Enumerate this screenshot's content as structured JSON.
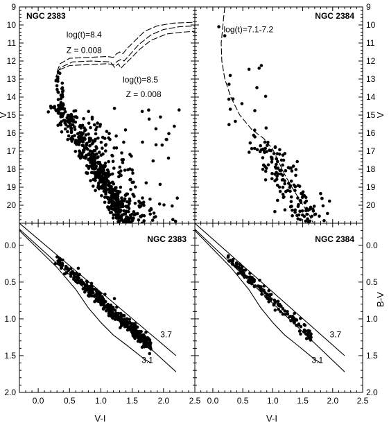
{
  "chart_data": [
    {
      "type": "scatter",
      "title": "NGC 2383",
      "xlabel": "",
      "ylabel": "V",
      "xlim": [
        -0.3,
        2.5
      ],
      "ylim": [
        9,
        21
      ],
      "yticks": [
        9,
        10,
        11,
        12,
        13,
        14,
        15,
        16,
        17,
        18,
        19,
        20
      ],
      "y_inverted": true,
      "annotations": [
        {
          "text": "log(t)=8.4",
          "x": 0.45,
          "y": 10.7
        },
        {
          "text": "Z = 0.008",
          "x": 0.45,
          "y": 11.55
        },
        {
          "text": "log(t)=8.5",
          "x": 1.35,
          "y": 13.2
        },
        {
          "text": "Z = 0.008",
          "x": 1.4,
          "y": 14.0
        }
      ],
      "isochrones": [
        {
          "style": "dashed",
          "points": [
            [
              0.3,
              12.6
            ],
            [
              0.35,
              12.15
            ],
            [
              0.5,
              11.85
            ],
            [
              0.8,
              11.8
            ],
            [
              1.1,
              11.75
            ],
            [
              1.2,
              11.8
            ],
            [
              1.25,
              11.6
            ],
            [
              1.3,
              11.5
            ],
            [
              1.35,
              11.6
            ],
            [
              1.42,
              11.3
            ],
            [
              1.55,
              10.85
            ],
            [
              1.7,
              10.35
            ],
            [
              1.9,
              10.05
            ],
            [
              2.15,
              9.9
            ],
            [
              2.5,
              9.85
            ]
          ]
        },
        {
          "style": "dashed",
          "points": [
            [
              0.28,
              12.9
            ],
            [
              0.33,
              12.5
            ],
            [
              0.5,
              12.25
            ],
            [
              0.8,
              12.2
            ],
            [
              1.1,
              12.15
            ],
            [
              1.2,
              12.2
            ],
            [
              1.27,
              12.0
            ],
            [
              1.33,
              11.9
            ],
            [
              1.37,
              12.0
            ],
            [
              1.45,
              11.7
            ],
            [
              1.6,
              11.1
            ],
            [
              1.8,
              10.55
            ],
            [
              2.0,
              10.25
            ],
            [
              2.25,
              10.1
            ],
            [
              2.5,
              10.05
            ]
          ]
        },
        {
          "style": "dashed",
          "points": [
            [
              0.3,
              12.65
            ],
            [
              0.36,
              12.35
            ],
            [
              0.55,
              12.05
            ],
            [
              0.85,
              12.0
            ],
            [
              1.15,
              12.05
            ],
            [
              1.22,
              12.35
            ],
            [
              1.28,
              12.15
            ],
            [
              1.32,
              12.4
            ],
            [
              1.36,
              12.25
            ],
            [
              1.48,
              11.85
            ],
            [
              1.62,
              11.35
            ],
            [
              1.8,
              10.85
            ],
            [
              2.05,
              10.5
            ],
            [
              2.3,
              10.4
            ],
            [
              2.5,
              10.35
            ]
          ]
        }
      ],
      "seed": 2383
    },
    {
      "type": "scatter",
      "title": "NGC 2384",
      "xlabel": "",
      "ylabel": "V",
      "xlim": [
        -0.3,
        2.5
      ],
      "ylim": [
        9,
        21
      ],
      "yticks": [
        9,
        10,
        11,
        12,
        13,
        14,
        15,
        16,
        17,
        18,
        19,
        20
      ],
      "y_inverted": true,
      "annotations": [
        {
          "text": "log(t)=7.1-7.2",
          "x": 0.18,
          "y": 10.4
        }
      ],
      "isochrones": [
        {
          "style": "dashed",
          "points": [
            [
              0.2,
              9.0
            ],
            [
              0.18,
              9.6
            ],
            [
              0.16,
              10.3
            ],
            [
              0.14,
              11.0
            ],
            [
              0.15,
              12.0
            ],
            [
              0.2,
              13.0
            ],
            [
              0.3,
              14.0
            ],
            [
              0.45,
              15.0
            ],
            [
              0.65,
              15.8
            ],
            [
              0.85,
              16.3
            ],
            [
              1.0,
              16.9
            ],
            [
              1.1,
              17.6
            ],
            [
              1.2,
              18.3
            ],
            [
              1.32,
              19.0
            ],
            [
              1.45,
              19.7
            ],
            [
              1.6,
              20.5
            ],
            [
              1.68,
              21.0
            ]
          ]
        }
      ],
      "seed": 2384
    },
    {
      "type": "scatter",
      "title": "NGC 2383",
      "xlabel": "V-I",
      "ylabel": "",
      "xlim": [
        -0.3,
        2.5
      ],
      "xticks": [
        0.0,
        0.5,
        1.0,
        1.5,
        2.0,
        2.5
      ],
      "ylim": [
        -0.3,
        2.0
      ],
      "yticks": [
        0.0,
        0.5,
        1.0,
        1.5,
        2.0
      ],
      "y_inverted": true,
      "line_labels": [
        {
          "text": "3.7",
          "x": 1.95,
          "y": 1.25
        },
        {
          "text": "3.1",
          "x": 1.65,
          "y": 1.6
        }
      ],
      "lines": [
        {
          "name": "curve",
          "points": [
            [
              -0.3,
              -0.2
            ],
            [
              0.0,
              0.05
            ],
            [
              0.3,
              0.3
            ],
            [
              0.6,
              0.6
            ],
            [
              0.8,
              0.85
            ],
            [
              1.0,
              1.05
            ],
            [
              1.2,
              1.22
            ],
            [
              1.4,
              1.35
            ],
            [
              1.55,
              1.45
            ],
            [
              1.7,
              1.55
            ],
            [
              1.8,
              1.6
            ]
          ]
        },
        {
          "name": "ratio-3.1",
          "points": [
            [
              -0.3,
              -0.22
            ],
            [
              2.2,
              1.72
            ]
          ]
        },
        {
          "name": "ratio-3.7",
          "points": [
            [
              -0.3,
              -0.3
            ],
            [
              2.2,
              1.5
            ]
          ]
        }
      ],
      "seed": 3383
    },
    {
      "type": "scatter",
      "title": "NGC 2384",
      "xlabel": "V-I",
      "ylabel": "B-V",
      "xlim": [
        -0.3,
        2.5
      ],
      "xticks": [
        0.0,
        0.5,
        1.0,
        1.5,
        2.0,
        2.5
      ],
      "ylim": [
        -0.3,
        2.0
      ],
      "yticks": [
        0.0,
        0.5,
        1.0,
        1.5,
        2.0
      ],
      "y_inverted": true,
      "line_labels": [
        {
          "text": "3.7",
          "x": 1.95,
          "y": 1.25
        },
        {
          "text": "3.1",
          "x": 1.65,
          "y": 1.6
        }
      ],
      "lines": [
        {
          "name": "curve",
          "points": [
            [
              -0.3,
              -0.2
            ],
            [
              0.0,
              0.05
            ],
            [
              0.3,
              0.3
            ],
            [
              0.6,
              0.6
            ],
            [
              0.8,
              0.85
            ],
            [
              1.0,
              1.05
            ],
            [
              1.2,
              1.22
            ],
            [
              1.4,
              1.35
            ],
            [
              1.55,
              1.45
            ],
            [
              1.7,
              1.55
            ],
            [
              1.8,
              1.6
            ]
          ]
        },
        {
          "name": "ratio-3.1",
          "points": [
            [
              -0.3,
              -0.22
            ],
            [
              2.2,
              1.72
            ]
          ]
        },
        {
          "name": "ratio-3.7",
          "points": [
            [
              -0.3,
              -0.3
            ],
            [
              2.2,
              1.5
            ]
          ]
        }
      ],
      "seed": 3384
    }
  ]
}
